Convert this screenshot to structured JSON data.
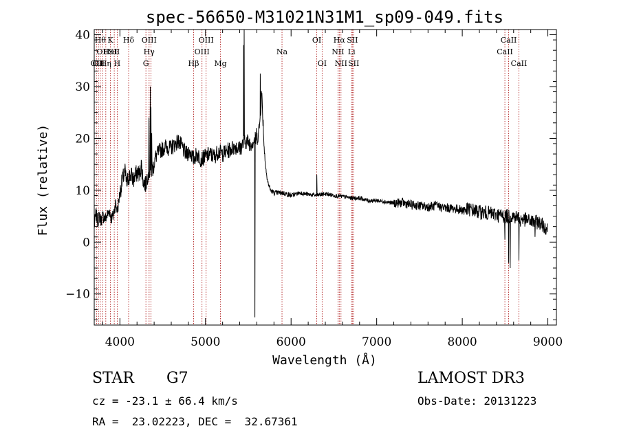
{
  "chart_data": {
    "type": "line",
    "title": "spec-56650-M31021N31M1_sp09-049.fits",
    "xlabel": "Wavelength (Å)",
    "ylabel": "Flux (relative)",
    "xlim": [
      3700,
      9100
    ],
    "ylim": [
      -16,
      41
    ],
    "xticks": [
      4000,
      5000,
      6000,
      7000,
      8000,
      9000
    ],
    "yticks": [
      -10,
      0,
      10,
      20,
      30,
      40
    ],
    "grid": false,
    "series_color": "#000000",
    "line_color": "#b22222",
    "anchors": [
      [
        3700,
        3.0
      ],
      [
        3720,
        5.5
      ],
      [
        3740,
        4.0
      ],
      [
        3760,
        5.0
      ],
      [
        3780,
        4.2
      ],
      [
        3800,
        5.0
      ],
      [
        3830,
        4.5
      ],
      [
        3860,
        5.5
      ],
      [
        3880,
        6.0
      ],
      [
        3900,
        4.5
      ],
      [
        3920,
        5.0
      ],
      [
        3950,
        7.5
      ],
      [
        3970,
        6.0
      ],
      [
        4000,
        9.5
      ],
      [
        4030,
        12.0
      ],
      [
        4060,
        13.5
      ],
      [
        4080,
        11.0
      ],
      [
        4100,
        12.5
      ],
      [
        4130,
        13.0
      ],
      [
        4160,
        12.0
      ],
      [
        4200,
        13.5
      ],
      [
        4230,
        13.0
      ],
      [
        4250,
        15.0
      ],
      [
        4270,
        12.0
      ],
      [
        4300,
        11.0
      ],
      [
        4330,
        13.5
      ],
      [
        4380,
        14.0
      ],
      [
        4420,
        16.5
      ],
      [
        4460,
        17.5
      ],
      [
        4500,
        18.0
      ],
      [
        4540,
        18.5
      ],
      [
        4580,
        18.0
      ],
      [
        4620,
        18.5
      ],
      [
        4680,
        19.5
      ],
      [
        4720,
        18.5
      ],
      [
        4770,
        17.0
      ],
      [
        4820,
        17.5
      ],
      [
        4860,
        16.0
      ],
      [
        4900,
        17.0
      ],
      [
        4950,
        16.0
      ],
      [
        5000,
        16.5
      ],
      [
        5050,
        17.0
      ],
      [
        5100,
        16.5
      ],
      [
        5150,
        17.5
      ],
      [
        5200,
        17.0
      ],
      [
        5250,
        17.5
      ],
      [
        5300,
        18.0
      ],
      [
        5350,
        18.5
      ],
      [
        5400,
        18.0
      ],
      [
        5440,
        19.0
      ],
      [
        5480,
        19.5
      ],
      [
        5530,
        19.0
      ],
      [
        5560,
        19.5
      ],
      [
        5600,
        20.0
      ],
      [
        5620,
        21.0
      ],
      [
        5640,
        24.0
      ],
      [
        5655,
        29.0
      ],
      [
        5665,
        26.0
      ],
      [
        5690,
        17.0
      ],
      [
        5720,
        12.0
      ],
      [
        5760,
        10.0
      ],
      [
        5800,
        9.5
      ],
      [
        5900,
        9.5
      ],
      [
        6000,
        9.0
      ],
      [
        6100,
        9.5
      ],
      [
        6200,
        9.2
      ],
      [
        6300,
        9.0
      ],
      [
        6400,
        9.3
      ],
      [
        6500,
        9.0
      ],
      [
        6600,
        8.8
      ],
      [
        6700,
        8.5
      ],
      [
        6800,
        8.5
      ],
      [
        6900,
        8.0
      ],
      [
        7000,
        8.0
      ],
      [
        7100,
        7.8
      ],
      [
        7200,
        7.5
      ],
      [
        7300,
        7.6
      ],
      [
        7400,
        7.2
      ],
      [
        7500,
        7.0
      ],
      [
        7600,
        6.8
      ],
      [
        7700,
        7.0
      ],
      [
        7800,
        6.6
      ],
      [
        7900,
        6.5
      ],
      [
        8000,
        6.2
      ],
      [
        8100,
        6.3
      ],
      [
        8200,
        5.8
      ],
      [
        8300,
        5.6
      ],
      [
        8400,
        5.3
      ],
      [
        8500,
        5.0
      ],
      [
        8600,
        5.0
      ],
      [
        8700,
        4.5
      ],
      [
        8800,
        4.0
      ],
      [
        8900,
        3.8
      ],
      [
        9000,
        2.5
      ]
    ],
    "spikes": [
      [
        4340,
        24.0
      ],
      [
        4355,
        30.0
      ],
      [
        4363,
        26.0
      ],
      [
        4372,
        21.0
      ],
      [
        5445,
        38.0
      ],
      [
        5452,
        41.0
      ],
      [
        5577,
        -14.5
      ],
      [
        5595,
        22.0
      ],
      [
        5640,
        32.5
      ],
      [
        6300,
        13.0
      ],
      [
        6363,
        9.5
      ],
      [
        8498,
        0.5
      ],
      [
        8542,
        -4.0
      ],
      [
        8560,
        -5.0
      ],
      [
        8662,
        -3.5
      ],
      [
        8680,
        3.0
      ],
      [
        8850,
        1.0
      ]
    ],
    "lines": [
      {
        "wl": 3727,
        "labels": [
          {
            "row": 2,
            "text": "OII"
          }
        ]
      },
      {
        "wl": 3750,
        "labels": [
          {
            "row": 2,
            "text": "OII"
          }
        ]
      },
      {
        "wl": 3771,
        "labels": [
          {
            "row": 0,
            "text": "Hθ"
          }
        ]
      },
      {
        "wl": 3798,
        "labels": [
          {
            "row": 1,
            "text": "OII"
          }
        ]
      },
      {
        "wl": 3835,
        "labels": [
          {
            "row": 2,
            "text": "Hη"
          }
        ]
      },
      {
        "wl": 3889,
        "labels": [
          {
            "row": 0,
            "text": "K"
          },
          {
            "row": 1,
            "text": "HeI"
          }
        ]
      },
      {
        "wl": 3934,
        "labels": [
          {
            "row": 1,
            "text": "SII"
          }
        ]
      },
      {
        "wl": 3969,
        "labels": [
          {
            "row": 2,
            "text": "H"
          }
        ]
      },
      {
        "wl": 4102,
        "labels": [
          {
            "row": 0,
            "text": "Hδ"
          }
        ]
      },
      {
        "wl": 4304,
        "labels": [
          {
            "row": 2,
            "text": "G"
          }
        ]
      },
      {
        "wl": 4341,
        "labels": [
          {
            "row": 0,
            "text": "OIII"
          },
          {
            "row": 1,
            "text": "Hγ"
          }
        ]
      },
      {
        "wl": 4363,
        "labels": []
      },
      {
        "wl": 4861,
        "labels": [
          {
            "row": 2,
            "text": "Hβ"
          }
        ]
      },
      {
        "wl": 4959,
        "labels": [
          {
            "row": 1,
            "text": "OIII"
          }
        ]
      },
      {
        "wl": 5007,
        "labels": [
          {
            "row": 0,
            "text": "OIII"
          }
        ]
      },
      {
        "wl": 5175,
        "labels": [
          {
            "row": 2,
            "text": "Mg"
          }
        ]
      },
      {
        "wl": 5894,
        "labels": [
          {
            "row": 1,
            "text": "Na"
          }
        ]
      },
      {
        "wl": 6300,
        "labels": [
          {
            "row": 0,
            "text": "OI"
          }
        ]
      },
      {
        "wl": 6363,
        "labels": [
          {
            "row": 2,
            "text": "OI"
          }
        ]
      },
      {
        "wl": 6548,
        "labels": [
          {
            "row": 1,
            "text": "NII"
          }
        ]
      },
      {
        "wl": 6563,
        "labels": [
          {
            "row": 0,
            "text": "Hα"
          }
        ]
      },
      {
        "wl": 6583,
        "labels": [
          {
            "row": 2,
            "text": "NII"
          }
        ]
      },
      {
        "wl": 6707,
        "labels": [
          {
            "row": 1,
            "text": "Li"
          }
        ]
      },
      {
        "wl": 6716,
        "labels": [
          {
            "row": 0,
            "text": "SII"
          }
        ]
      },
      {
        "wl": 6731,
        "labels": [
          {
            "row": 2,
            "text": "SII"
          }
        ]
      },
      {
        "wl": 8498,
        "labels": [
          {
            "row": 1,
            "text": "CaII"
          }
        ]
      },
      {
        "wl": 8542,
        "labels": [
          {
            "row": 0,
            "text": "CaII"
          }
        ]
      },
      {
        "wl": 8662,
        "labels": [
          {
            "row": 2,
            "text": "CaII"
          }
        ]
      }
    ]
  },
  "info": {
    "object_class": "STAR",
    "subclass": "G7",
    "survey": "LAMOST DR3",
    "cz_line": "cz = -23.1 ± 66.4 km/s",
    "obs_date": "Obs-Date: 20131223",
    "coords": "RA =  23.02223, DEC =  32.67361"
  }
}
